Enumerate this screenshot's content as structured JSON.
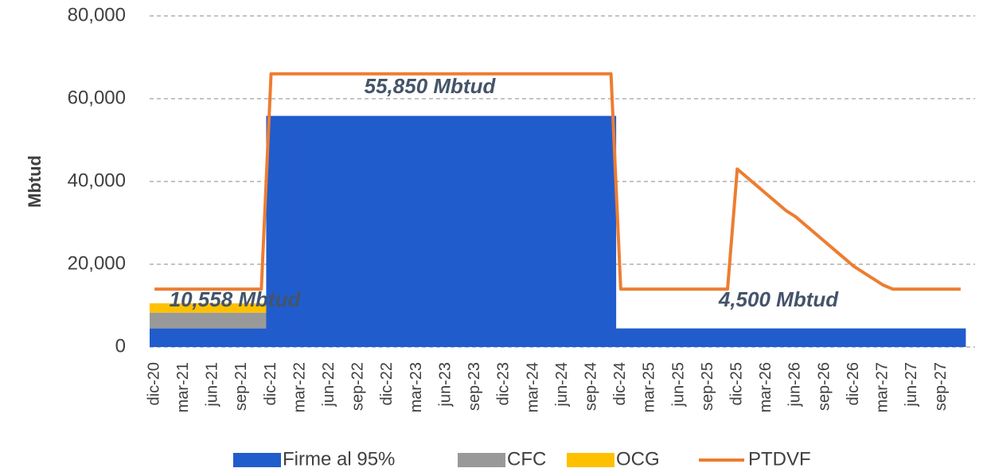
{
  "chart_data": {
    "type": "stacked-bar-line",
    "y_label": "Mbtud",
    "categories": [
      "dic-20",
      null,
      null,
      "mar-21",
      null,
      null,
      "jun-21",
      null,
      null,
      "sep-21",
      null,
      null,
      "dic-21",
      null,
      null,
      "mar-22",
      null,
      null,
      "jun-22",
      null,
      null,
      "sep-22",
      null,
      null,
      "dic-22",
      null,
      null,
      "mar-23",
      null,
      null,
      "jun-23",
      null,
      null,
      "sep-23",
      null,
      null,
      "dic-23",
      null,
      null,
      "mar-24",
      null,
      null,
      "jun-24",
      null,
      null,
      "sep-24",
      null,
      null,
      "dic-24",
      null,
      null,
      "mar-25",
      null,
      null,
      "jun-25",
      null,
      null,
      "sep-25",
      null,
      null,
      "dic-25",
      null,
      null,
      "mar-26",
      null,
      null,
      "jun-26",
      null,
      null,
      "sep-26",
      null,
      null,
      "dic-26",
      null,
      null,
      "mar-27",
      null,
      null,
      "jun-27",
      null,
      null,
      "sep-27",
      null,
      null
    ],
    "series": [
      {
        "name": "Firme al 95%",
        "color": "#215ccc",
        "kind": "bar",
        "values": [
          4500,
          4500,
          4500,
          4500,
          4500,
          4500,
          4500,
          4500,
          4500,
          4500,
          4500,
          4500,
          55850,
          55850,
          55850,
          55850,
          55850,
          55850,
          55850,
          55850,
          55850,
          55850,
          55850,
          55850,
          55850,
          55850,
          55850,
          55850,
          55850,
          55850,
          55850,
          55850,
          55850,
          55850,
          55850,
          55850,
          55850,
          55850,
          55850,
          55850,
          55850,
          55850,
          55850,
          55850,
          55850,
          55850,
          55850,
          55850,
          4500,
          4500,
          4500,
          4500,
          4500,
          4500,
          4500,
          4500,
          4500,
          4500,
          4500,
          4500,
          4500,
          4500,
          4500,
          4500,
          4500,
          4500,
          4500,
          4500,
          4500,
          4500,
          4500,
          4500,
          4500,
          4500,
          4500,
          4500,
          4500,
          4500,
          4500,
          4500,
          4500,
          4500,
          4500,
          4500
        ]
      },
      {
        "name": "CFC",
        "color": "#999999",
        "kind": "bar",
        "values": [
          3800,
          3800,
          3800,
          3800,
          3800,
          3800,
          3800,
          3800,
          3800,
          3800,
          3800,
          3800,
          0,
          0,
          0,
          0,
          0,
          0,
          0,
          0,
          0,
          0,
          0,
          0,
          0,
          0,
          0,
          0,
          0,
          0,
          0,
          0,
          0,
          0,
          0,
          0,
          0,
          0,
          0,
          0,
          0,
          0,
          0,
          0,
          0,
          0,
          0,
          0,
          0,
          0,
          0,
          0,
          0,
          0,
          0,
          0,
          0,
          0,
          0,
          0,
          0,
          0,
          0,
          0,
          0,
          0,
          0,
          0,
          0,
          0,
          0,
          0,
          0,
          0,
          0,
          0,
          0,
          0,
          0,
          0,
          0,
          0,
          0,
          0
        ]
      },
      {
        "name": "OCG",
        "color": "#ffc000",
        "kind": "bar",
        "values": [
          2258,
          2258,
          2258,
          2258,
          2258,
          2258,
          2258,
          2258,
          2258,
          2258,
          2258,
          2258,
          0,
          0,
          0,
          0,
          0,
          0,
          0,
          0,
          0,
          0,
          0,
          0,
          0,
          0,
          0,
          0,
          0,
          0,
          0,
          0,
          0,
          0,
          0,
          0,
          0,
          0,
          0,
          0,
          0,
          0,
          0,
          0,
          0,
          0,
          0,
          0,
          0,
          0,
          0,
          0,
          0,
          0,
          0,
          0,
          0,
          0,
          0,
          0,
          0,
          0,
          0,
          0,
          0,
          0,
          0,
          0,
          0,
          0,
          0,
          0,
          0,
          0,
          0,
          0,
          0,
          0,
          0,
          0,
          0,
          0,
          0,
          0
        ]
      },
      {
        "name": "PTDVF",
        "color": "#ed7d31",
        "kind": "line",
        "values": [
          14000,
          14000,
          14000,
          14000,
          14000,
          14000,
          14000,
          14000,
          14000,
          14000,
          14000,
          14000,
          66000,
          66000,
          66000,
          66000,
          66000,
          66000,
          66000,
          66000,
          66000,
          66000,
          66000,
          66000,
          66000,
          66000,
          66000,
          66000,
          66000,
          66000,
          66000,
          66000,
          66000,
          66000,
          66000,
          66000,
          66000,
          66000,
          66000,
          66000,
          66000,
          66000,
          66000,
          66000,
          66000,
          66000,
          66000,
          66000,
          14000,
          14000,
          14000,
          14000,
          14000,
          14000,
          14000,
          14000,
          14000,
          14000,
          14000,
          14000,
          43000,
          41000,
          39000,
          37000,
          35000,
          33000,
          31500,
          29500,
          27500,
          25500,
          23500,
          21500,
          19500,
          18000,
          16500,
          15000,
          14000,
          14000,
          14000,
          14000,
          14000,
          14000,
          14000,
          14000
        ]
      }
    ],
    "annotations": [
      "55,850 Mbtud",
      "10,558 Mbtud",
      "4,500 Mbtud"
    ],
    "ylim": [
      0,
      80000
    ],
    "yticks": [
      0,
      {
        "value": 20000,
        "label": "20,000"
      },
      {
        "value": 40000,
        "label": "40,000"
      },
      {
        "value": 60000,
        "label": "60,000"
      },
      {
        "value": 80000,
        "label": "80,000"
      }
    ],
    "grid": true,
    "legend": "bottom"
  }
}
